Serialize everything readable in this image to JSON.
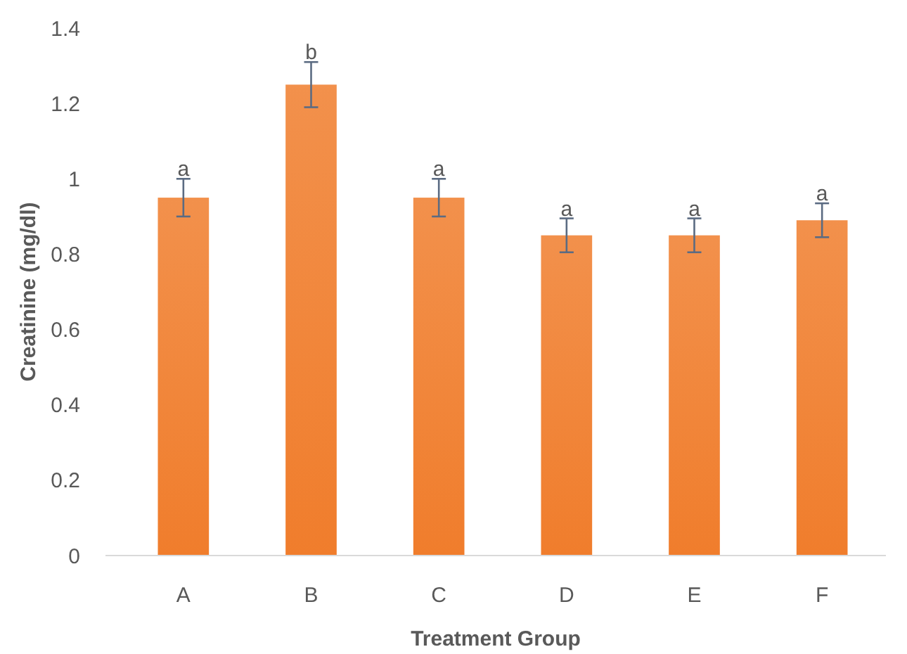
{
  "chart_data": {
    "type": "bar",
    "xlabel": "Treatment Group",
    "ylabel": "Creatinine  (mg/dl)",
    "categories": [
      "A",
      "B",
      "C",
      "D",
      "E",
      "F"
    ],
    "values": [
      0.95,
      1.25,
      0.95,
      0.85,
      0.85,
      0.89
    ],
    "errors": [
      0.05,
      0.06,
      0.05,
      0.045,
      0.045,
      0.045
    ],
    "color": "#f07d2c",
    "ylim": [
      0,
      1.4
    ],
    "yticks": [
      0,
      0.2,
      0.4,
      0.6,
      0.8,
      {
        "value": 1,
        "label": "1"
      },
      1.2,
      1.4
    ],
    "grid": false,
    "annotations": [
      {
        "text": "a",
        "x": "A",
        "y": 1.0
      },
      {
        "text": "b",
        "x": "B",
        "y": 1.31
      },
      {
        "text": "a",
        "x": "C",
        "y": 1.0
      },
      {
        "text": "a",
        "x": "D",
        "y": 0.895
      },
      {
        "text": "a",
        "x": "E",
        "y": 0.895
      },
      {
        "text": "a",
        "x": "F",
        "y": 0.935
      }
    ]
  }
}
